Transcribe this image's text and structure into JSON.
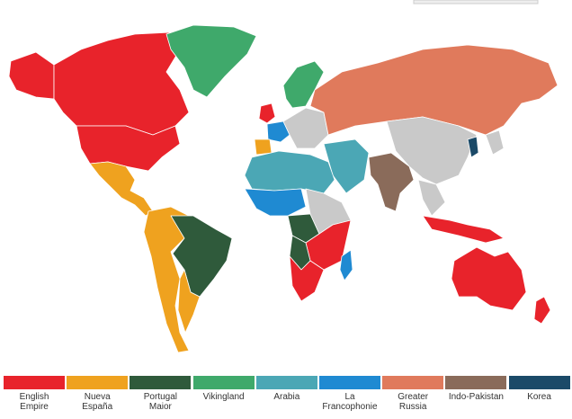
{
  "legend": [
    {
      "label": "English Empire",
      "color": "#e8232b"
    },
    {
      "label": "Nueva España",
      "color": "#efa21f"
    },
    {
      "label": "Portugal Maior",
      "color": "#2f5a3b"
    },
    {
      "label": "Vikingland",
      "color": "#3fa96b"
    },
    {
      "label": "Arabia",
      "color": "#4ba7b5"
    },
    {
      "label": "La Francophonie",
      "color": "#1f8ad2"
    },
    {
      "label": "Greater Russia",
      "color": "#e07a5c"
    },
    {
      "label": "Indo-Pakistan",
      "color": "#8a6b5a"
    },
    {
      "label": "Korea",
      "color": "#1b4a68"
    }
  ]
}
